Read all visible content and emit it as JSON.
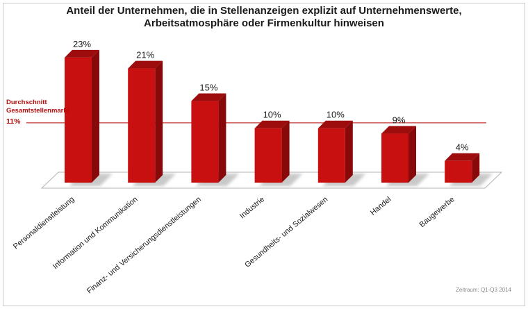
{
  "title": {
    "line1": "Anteil der Unternehmen, die in Stellenanzeigen explizit auf Unternehmenswerte,",
    "line2": "Arbeitsatmosphäre oder Firmenkultur hinweisen"
  },
  "average_annotation": {
    "line1": "Durchschnitt",
    "line2": "Gesamtstellenmarkt",
    "value_label": "11%"
  },
  "footnote": "Zeitraum: Q1-Q3 2014",
  "colors": {
    "bar_front": "#c91010",
    "bar_top": "#9e0d0d",
    "bar_side": "#870909",
    "shadow": "#c9c9c9",
    "floor_fill": "#ffffff",
    "floor_stroke": "#b3b3b3",
    "average_line": "#c23535",
    "average_text": "#b50d0d",
    "label_text": "#1a1a1a",
    "footnote_text": "#8a8a8a"
  },
  "chart_data": {
    "type": "bar",
    "style": "3d-column",
    "title": "Anteil der Unternehmen, die in Stellenanzeigen explizit auf Unternehmenswerte, Arbeitsatmosphäre oder Firmenkultur hinweisen",
    "categories": [
      "Personaldienstleistung",
      "Information und Kommunikation",
      "Finanz- und Versicherungsdienstleistungen",
      "Industrie",
      "Gesundheits- und Sozialwesen",
      "Handel",
      "Baugewerbe"
    ],
    "values": [
      23,
      21,
      15,
      10,
      10,
      9,
      4
    ],
    "value_labels": [
      "23%",
      "21%",
      "15%",
      "10%",
      "10%",
      "9%",
      "4%"
    ],
    "unit": "%",
    "average_line": {
      "value": 11,
      "label": "Durchschnitt Gesamtstellenmarkt",
      "value_label": "11%"
    },
    "ylim": [
      0,
      25
    ],
    "grid": false,
    "legend": false,
    "period": "Q1-Q3 2014"
  }
}
